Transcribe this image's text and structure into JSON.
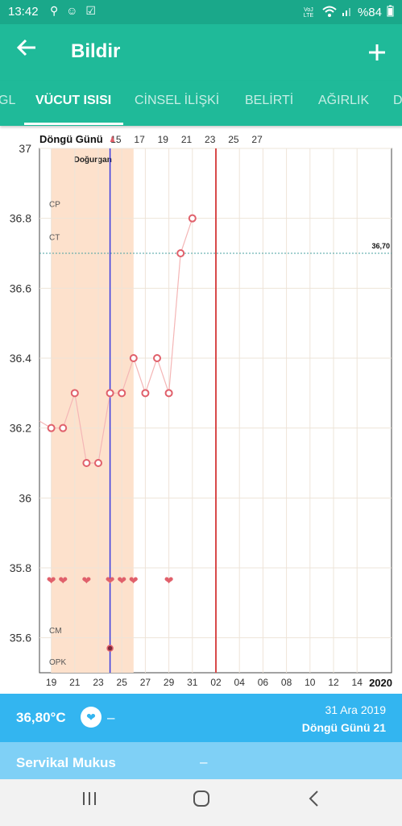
{
  "status": {
    "time": "13:42",
    "icons": [
      "walk-icon",
      "baby-icon",
      "check-icon"
    ],
    "volte": "VoJ LTE",
    "battery": "%84"
  },
  "appbar": {
    "title": "Bildir"
  },
  "tabs": [
    {
      "label": "GL"
    },
    {
      "label": "VÜCUT ISISI"
    },
    {
      "label": "CİNSEL İLİŞKİ"
    },
    {
      "label": "BELİRTİ"
    },
    {
      "label": "AĞIRLIK"
    },
    {
      "label": "D"
    }
  ],
  "chart_data": {
    "type": "line",
    "header": "Döngü Günü",
    "cycle_day_ticks": [
      "15",
      "17",
      "19",
      "21",
      "23",
      "25",
      "27"
    ],
    "x_tick_labels": [
      "19",
      "21",
      "23",
      "25",
      "27",
      "29",
      "31",
      "02",
      "04",
      "06",
      "08",
      "10",
      "12",
      "14"
    ],
    "year_label": "2020",
    "y_ticks": [
      "37",
      "36.8",
      "36.6",
      "36.4",
      "36.2",
      "36",
      "35.8",
      "35.6"
    ],
    "ylim": [
      35.5,
      37.0
    ],
    "fertile_label": "Doğurgan",
    "fertile_range_days": [
      19.0,
      26.0
    ],
    "ovulation_day": 24,
    "today_day": 33,
    "coverline_value": 36.7,
    "coverline_label": "36,70",
    "row_labels": [
      "CP",
      "CT",
      "CM",
      "OPK"
    ],
    "series": [
      {
        "days": [
          18,
          19,
          20,
          21,
          22,
          23,
          24,
          25,
          26,
          27,
          28,
          29,
          30,
          31
        ],
        "values": [
          36.22,
          36.2,
          36.2,
          36.3,
          36.1,
          36.1,
          36.3,
          36.3,
          36.4,
          36.3,
          36.4,
          36.3,
          36.7,
          36.8
        ]
      }
    ],
    "markers": [
      {
        "day": 19,
        "row": "hearts"
      },
      {
        "day": 20,
        "row": "hearts"
      },
      {
        "day": 22,
        "row": "hearts"
      },
      {
        "day": 24,
        "row": "hearts"
      },
      {
        "day": 25,
        "row": "hearts"
      },
      {
        "day": 26,
        "row": "hearts"
      },
      {
        "day": 29,
        "row": "hearts"
      },
      {
        "day": 24,
        "row": "OPK"
      }
    ],
    "colors": {
      "fertile": "#fde1cc",
      "line": "#f4b6b6",
      "point": "#e0606b",
      "ovulation": "#3a3ae0",
      "today": "#d84a4a",
      "coverline": "#4aa0a0"
    }
  },
  "info": {
    "temperature": "36,80°C",
    "intercourse": "–",
    "date": "31 Ara 2019",
    "cycle_day": "Döngü Günü 21"
  },
  "mucus": {
    "label": "Servikal Mukus",
    "value": "–"
  }
}
